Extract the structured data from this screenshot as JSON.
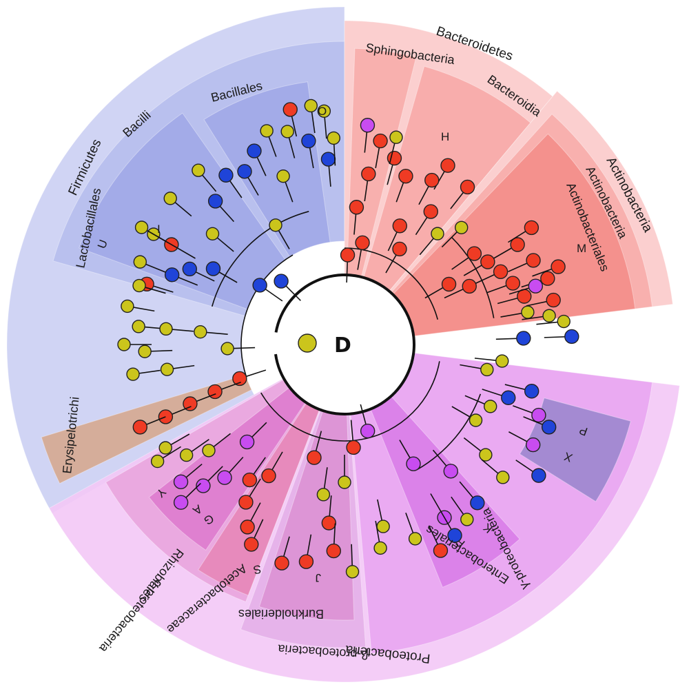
{
  "center_label": "D",
  "colors": {
    "red": "#ef3b24",
    "blue": "#1f44d8",
    "purple": "#c84cf0",
    "olive": "#cbc51c",
    "blue_bg": "#c8cdf2",
    "blue_mid": "#a6aeea",
    "blue_dark": "#8a93e0",
    "red_bg": "#fbcaca",
    "red_mid": "#f7a2a0",
    "red_dark": "#f07873",
    "purple_bg": "#f3c8f6",
    "purple_mid": "#e59bf0",
    "purple_dark": "#d470e6",
    "brown": "#d7a07c",
    "navy": "#6a6fb8"
  },
  "labels": {
    "firmicutes": "Firmicutes",
    "bacilli": "Bacilli",
    "bacillales": "Bacillales",
    "lactobacillales": "Lactobacillales",
    "erysipelotrichi": "Erysipelotrichi",
    "bacteroidetes": "Bacteroidetes",
    "sphingobacteria": "Sphingobacteria",
    "bacteroidia": "Bacteroidia",
    "actinobacteria_phylum": "Actinobacteria",
    "actinobacteria_class": "Actinobacteria",
    "actinobacteriales": "Actinobacteriales",
    "proteobacteria": "Proteobacteria",
    "gamma_proteobacteria": "γ-proteobacteria",
    "enterobacteriales": "Enterobacteriales",
    "beta_proteobacteria": "β-proteobacteria",
    "burkholderiales": "Burkholderiales",
    "alpha_proteobacteria": "α-proteobacteria",
    "rhizobiales": "Rhizobiales",
    "acetobacteraceae": "Acetobacteraceae"
  },
  "letters": {
    "O": "O",
    "I": "I",
    "U": "U",
    "H": "H",
    "M": "M",
    "P": "P",
    "X": "X",
    "K": "K",
    "F": "F",
    "S": "S",
    "J": "J",
    "G": "G",
    "A": "A",
    "Y": "Y"
  }
}
